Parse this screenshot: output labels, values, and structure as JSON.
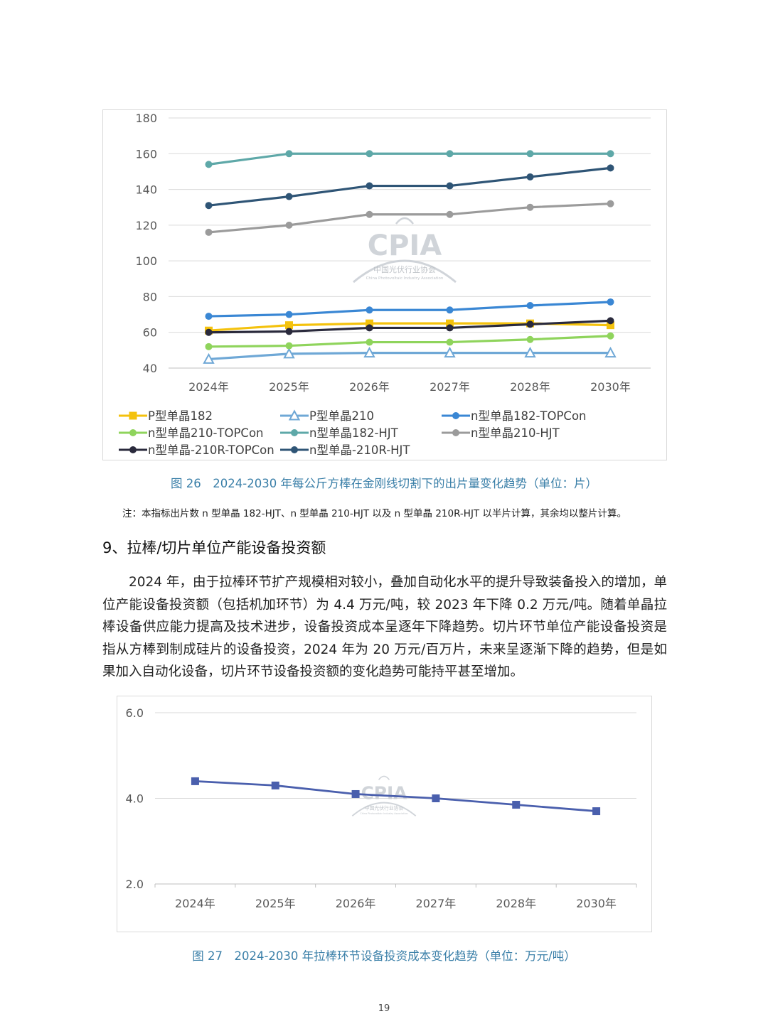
{
  "chart_data": [
    {
      "type": "line",
      "categories": [
        "2024年",
        "2025年",
        "2026年",
        "2027年",
        "2028年",
        "2030年"
      ],
      "ylim": [
        40,
        180
      ],
      "yticks": [
        40,
        60,
        80,
        100,
        120,
        140,
        160,
        180
      ],
      "grid": true,
      "legend": "bottom",
      "series": [
        {
          "name": "P型单晶182",
          "values": [
            61,
            64,
            65,
            65,
            65,
            64
          ],
          "color": "#f4c20d",
          "marker": "square"
        },
        {
          "name": "P型单晶210",
          "values": [
            45,
            48,
            48.5,
            48.5,
            48.5,
            48.5
          ],
          "color": "#6fa8d6",
          "marker": "triangle-open"
        },
        {
          "name": "n型单晶182-TOPCon",
          "values": [
            69,
            70,
            72.5,
            72.5,
            75,
            77
          ],
          "color": "#3a87d4",
          "marker": "circle"
        },
        {
          "name": "n型单晶210-TOPCon",
          "values": [
            52,
            52.5,
            54.5,
            54.5,
            56,
            58
          ],
          "color": "#8fd45c",
          "marker": "circle"
        },
        {
          "name": "n型单晶182-HJT",
          "values": [
            154,
            160,
            160,
            160,
            160,
            160
          ],
          "color": "#5ea8a8",
          "marker": "circle"
        },
        {
          "name": "n型单晶210-HJT",
          "values": [
            116,
            120,
            126,
            126,
            130,
            132
          ],
          "color": "#9b9b9b",
          "marker": "circle"
        },
        {
          "name": "n型单晶-210R-TOPCon",
          "values": [
            60,
            60.5,
            62.5,
            62.5,
            64.5,
            66.5
          ],
          "color": "#2a2a3c",
          "marker": "circle"
        },
        {
          "name": "n型单晶-210R-HJT",
          "values": [
            131,
            136,
            142,
            142,
            147,
            152
          ],
          "color": "#2f5576",
          "marker": "circle"
        }
      ]
    },
    {
      "type": "line",
      "categories": [
        "2024年",
        "2025年",
        "2026年",
        "2027年",
        "2028年",
        "2030年"
      ],
      "ylim": [
        2.0,
        6.0
      ],
      "yticks": [
        "2.0",
        "4.0",
        "6.0"
      ],
      "grid": true,
      "legend": "none",
      "series": [
        {
          "values": [
            4.4,
            4.3,
            4.1,
            4.0,
            3.85,
            3.7
          ],
          "color": "#4a5fad",
          "marker": "square"
        }
      ]
    }
  ],
  "watermark": {
    "logo": "CPIA",
    "name": "中国光伏行业协会",
    "english": "China Photovoltaic Industry Association"
  },
  "captions": {
    "fig26": "图 26　2024-2030 年每公斤方棒在金刚线切割下的出片量变化趋势（单位：片）",
    "fig27": "图 27　2024-2030 年拉棒环节设备投资成本变化趋势（单位：万元/吨）"
  },
  "note": "注：本指标出片数 n 型单晶 182-HJT、n 型单晶 210-HJT 以及 n 型单晶 210R-HJT 以半片计算，其余均以整片计算。",
  "section_heading": "9、拉棒/切片单位产能设备投资额",
  "paragraph": "2024 年，由于拉棒环节扩产规模相对较小，叠加自动化水平的提升导致装备投入的增加，单位产能设备投资额（包括机加环节）为 4.4 万元/吨，较 2023 年下降 0.2 万元/吨。随着单晶拉棒设备供应能力提高及技术进步，设备投资成本呈逐年下降趋势。切片环节单位产能设备投资是指从方棒到制成硅片的设备投资，2024 年为 20 万元/百万片，未来呈逐渐下降的趋势，但是如果加入自动化设备，切片环节设备投资额的变化趋势可能持平甚至增加。",
  "page_number": "19",
  "colors": {
    "caption": "#3a7fa8",
    "grid": "#d9d9d9"
  }
}
